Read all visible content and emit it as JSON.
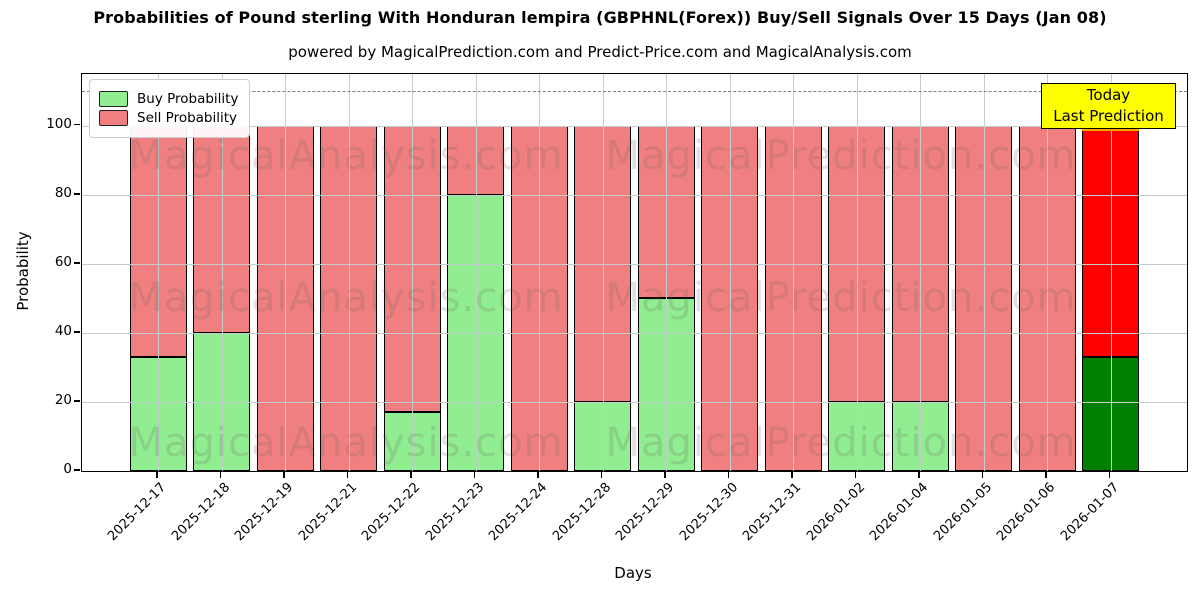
{
  "header": {
    "title": "Probabilities of Pound sterling With Honduran lempira (GBPHNL(Forex)) Buy/Sell Signals Over 15 Days (Jan 08)",
    "subtitle": "powered by MagicalPrediction.com and Predict-Price.com and MagicalAnalysis.com"
  },
  "axes": {
    "x_label": "Days",
    "y_label": "Probability"
  },
  "legend": {
    "items": [
      {
        "label": "Buy Probability",
        "color": "#90EE90"
      },
      {
        "label": "Sell Probability",
        "color": "#F08080"
      }
    ]
  },
  "annotation": {
    "line1": "Today",
    "line2": "Last Prediction",
    "bg_color": "#FFFF00",
    "border_color": "#000000"
  },
  "watermarks": {
    "left_text": "MagicalAnalysis.com",
    "right_text": "MagicalPrediction.com"
  },
  "chart_data": {
    "type": "bar",
    "stacked": true,
    "title": "Probabilities of Pound sterling With Honduran lempira (GBPHNL(Forex)) Buy/Sell Signals Over 15 Days (Jan 08)",
    "xlabel": "Days",
    "ylabel": "Probability",
    "categories": [
      "2025-12-17",
      "2025-12-18",
      "2025-12-19",
      "2025-12-21",
      "2025-12-22",
      "2025-12-23",
      "2025-12-24",
      "2025-12-28",
      "2025-12-29",
      "2025-12-30",
      "2025-12-31",
      "2026-01-02",
      "2026-01-04",
      "2026-01-05",
      "2026-01-06",
      "2026-01-07"
    ],
    "series": [
      {
        "name": "Buy Probability",
        "color": "#90EE90",
        "values": [
          33,
          40,
          0,
          0,
          17,
          80,
          0,
          20,
          50,
          0,
          0,
          20,
          20,
          0,
          0,
          33
        ]
      },
      {
        "name": "Sell Probability",
        "color": "#F08080",
        "values": [
          67,
          60,
          100,
          100,
          83,
          20,
          100,
          80,
          50,
          100,
          100,
          80,
          80,
          100,
          100,
          67
        ]
      }
    ],
    "bar_total": 100,
    "today_index": 15,
    "today_colors": {
      "buy": "#008000",
      "sell": "#FF0000",
      "cap": "#FFA500"
    },
    "ylim": [
      0,
      115
    ],
    "yticks": [
      0,
      20,
      40,
      60,
      80,
      100
    ],
    "dashed_line_y": 110,
    "grid": true,
    "legend_position": "upper left",
    "edge_color": "#000000"
  }
}
